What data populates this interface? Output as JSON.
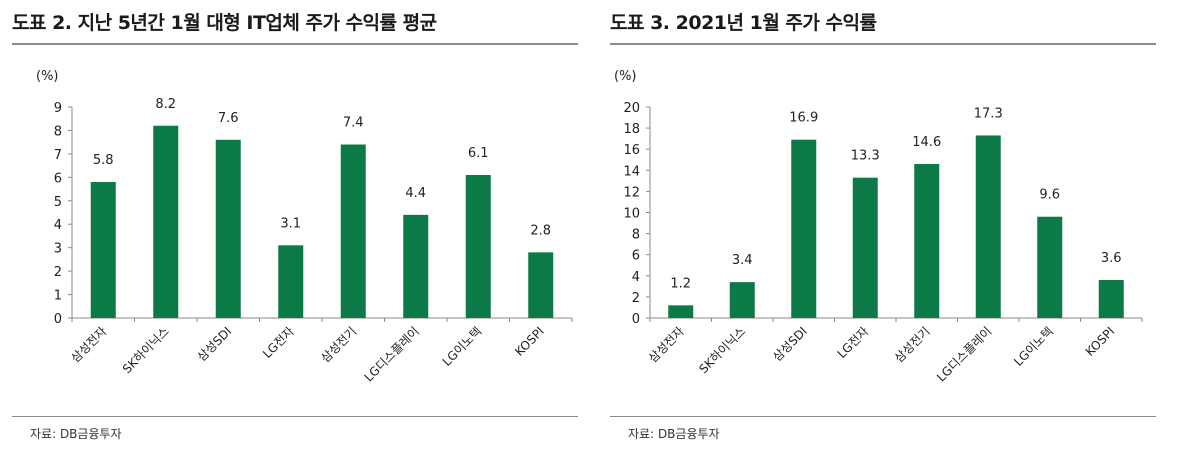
{
  "colors": {
    "bar": "#0b7a46",
    "axis": "#8a8a8a"
  },
  "chart_data": [
    {
      "type": "bar",
      "title": "도표 2. 지난 5년간 1월 대형 IT업체 주가 수익률 평균",
      "unit_label": "(%)",
      "source": "자료: DB금융투자",
      "categories": [
        "삼성전자",
        "SK하이닉스",
        "삼성SDI",
        "LG전자",
        "삼성전기",
        "LG디스플레이",
        "LG이노텍",
        "KOSPI"
      ],
      "values": [
        5.8,
        8.2,
        7.6,
        3.1,
        7.4,
        4.4,
        6.1,
        2.8
      ],
      "value_labels": [
        "5.8",
        "8.2",
        "7.6",
        "3.1",
        "7.4",
        "4.4",
        "6.1",
        "2.8"
      ],
      "ylim": [
        0,
        9
      ],
      "yticks": [
        "0",
        "1",
        "2",
        "3",
        "4",
        "5",
        "6",
        "7",
        "8",
        "9"
      ],
      "grid": false,
      "legend": "none"
    },
    {
      "type": "bar",
      "title": "도표 3. 2021년 1월 주가 수익률",
      "unit_label": "(%)",
      "source": "자료: DB금융투자",
      "categories": [
        "삼성전자",
        "SK하이닉스",
        "삼성SDI",
        "LG전자",
        "삼성전기",
        "LG디스플레이",
        "LG이노텍",
        "KOSPI"
      ],
      "values": [
        1.2,
        3.4,
        16.9,
        13.3,
        14.6,
        17.3,
        9.6,
        3.6
      ],
      "value_labels": [
        "1.2",
        "3.4",
        "16.9",
        "13.3",
        "14.6",
        "17.3",
        "9.6",
        "3.6"
      ],
      "ylim": [
        0,
        20
      ],
      "yticks": [
        "0",
        "2",
        "4",
        "6",
        "8",
        "10",
        "12",
        "14",
        "16",
        "18",
        "20"
      ],
      "grid": false,
      "legend": "none"
    }
  ]
}
